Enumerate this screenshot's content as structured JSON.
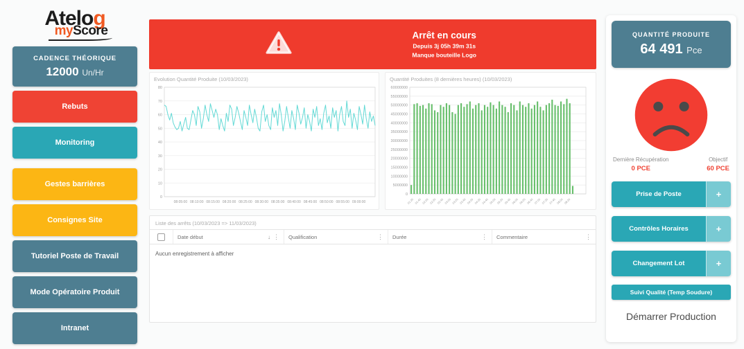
{
  "palette": {
    "slate": "#4e7e91",
    "red": "#ef4334",
    "banner_red": "#ef3b2d",
    "teal": "#2aa7b5",
    "teal_light": "#79cad3",
    "orange": "#fcb614",
    "bar_green": "#67bf6b",
    "line_teal": "#62d9d5",
    "face_red": "#f23d32"
  },
  "logo": {
    "part1_black": "Atelo",
    "part1_orange": "g",
    "part2_orange": "my",
    "part2_black": "Score"
  },
  "sidebar": {
    "cadence": {
      "label": "CADENCE THÉORIQUE",
      "value": "12000",
      "unit": "Un/Hr"
    },
    "items": [
      {
        "label": "Rebuts",
        "color": "#ef4334"
      },
      {
        "label": "Monitoring",
        "color": "#2aa7b5"
      },
      {
        "label": "Gestes barrières",
        "color": "#fcb614"
      },
      {
        "label": "Consignes Site",
        "color": "#fcb614"
      },
      {
        "label": "Tutoriel Poste de Travail",
        "color": "#4e7e91"
      },
      {
        "label": "Mode Opératoire Produit",
        "color": "#4e7e91"
      },
      {
        "label": "Intranet",
        "color": "#4e7e91"
      }
    ]
  },
  "banner": {
    "title": "Arrêt en cours",
    "since": "Depuis 3j 05h 39m 31s",
    "reason": "Manque bouteille Logo",
    "icon": "warning-triangle"
  },
  "chart_data": [
    {
      "type": "line",
      "title": "Evolution Quantité Produite (10/03/2023)",
      "ylabel": "",
      "xlabel": "",
      "ylim": [
        0,
        80
      ],
      "ytick_step": 10,
      "line_color": "#62d9d5",
      "grid": true,
      "x_ticks": [
        "08:05:00",
        "08:10:00",
        "08:15:00",
        "08:20:00",
        "08:25:00",
        "08:30:00",
        "08:35:00",
        "08:40:00",
        "08:45:00",
        "08:50:00",
        "08:55:00",
        "09:00:00"
      ],
      "x_domain_minutes": 65,
      "values": [
        67,
        66,
        60,
        56,
        61,
        54,
        51,
        49,
        50,
        55,
        48,
        53,
        58,
        50,
        49,
        56,
        63,
        60,
        52,
        66,
        62,
        50,
        57,
        67,
        60,
        55,
        68,
        63,
        58,
        64,
        60,
        49,
        57,
        52,
        48,
        61,
        55,
        67,
        64,
        52,
        58,
        66,
        61,
        55,
        49,
        63,
        58,
        52,
        67,
        60,
        54,
        64,
        58,
        50,
        48,
        62,
        67,
        55,
        60,
        52,
        49,
        65,
        58,
        63,
        52,
        68,
        60,
        48,
        55,
        66,
        58,
        50,
        63,
        57,
        49,
        67,
        61,
        53,
        58,
        65,
        50,
        60,
        55,
        48,
        64,
        58,
        66,
        52,
        57,
        49,
        61,
        67,
        54,
        59,
        50,
        65,
        58,
        63,
        48,
        60,
        66,
        55,
        52,
        70,
        58,
        64,
        50,
        61,
        56,
        49,
        66,
        60,
        53,
        67,
        57,
        50,
        62,
        55,
        59,
        52
      ]
    },
    {
      "type": "bar",
      "title": "Quantité Produites (8 dernières heures) (10/03/2023)",
      "ylabel": "",
      "xlabel": "",
      "ylim": [
        0,
        60000000
      ],
      "ytick_step": 5000000,
      "bar_color": "#67bf6b",
      "grid": true,
      "x_ticks": [
        "01:20",
        "01:40",
        "02:00",
        "02:20",
        "02:40",
        "03:00",
        "03:20",
        "03:40",
        "04:00",
        "04:20",
        "04:40",
        "05:00",
        "05:20",
        "05:40",
        "06:00",
        "06:20",
        "06:40",
        "07:00",
        "07:20",
        "07:40",
        "08:00",
        "08:20"
      ],
      "values": [
        5000000,
        50500000,
        51000000,
        49500000,
        50000000,
        48000000,
        51000000,
        50500000,
        47000000,
        46000000,
        50000000,
        49000000,
        51000000,
        50000000,
        46000000,
        45000000,
        50000000,
        51000000,
        49000000,
        50500000,
        52000000,
        48000000,
        50000000,
        51000000,
        47000000,
        50000000,
        49000000,
        51500000,
        50000000,
        48000000,
        52000000,
        50000000,
        49000000,
        46000000,
        51000000,
        50000000,
        47000000,
        52000000,
        50000000,
        49000000,
        51000000,
        48000000,
        50000000,
        52000000,
        49000000,
        47000000,
        50000000,
        51000000,
        53000000,
        50000000,
        49500000,
        52000000,
        50500000,
        53500000,
        51000000,
        4500000
      ]
    }
  ],
  "table": {
    "title": "Liste des arrêts (10/03/2023 => 11/03/2023)",
    "columns": [
      "Date début",
      "Qualification",
      "Durée",
      "Commentaire"
    ],
    "sort_icon": "↓",
    "menu_icon": "⋮",
    "empty_message": "Aucun enregistrement à afficher"
  },
  "right_panel": {
    "produced": {
      "label": "QUANTITÉ PRODUITE",
      "value": "64 491",
      "unit": "Pce"
    },
    "mood": "sad-face",
    "stats": [
      {
        "label": "Dernière Récupération",
        "value": "0 PCE"
      },
      {
        "label": "Objectif",
        "value": "60 PCE"
      }
    ],
    "actions": [
      {
        "label": "Prise de Poste",
        "plus": "+"
      },
      {
        "label": "Contrôles Horaires",
        "plus": "+"
      },
      {
        "label": "Changement Lot",
        "plus": "+"
      }
    ],
    "quality_button": "Suivi Qualité (Temp Soudure)",
    "start_label": "Démarrer Production"
  }
}
